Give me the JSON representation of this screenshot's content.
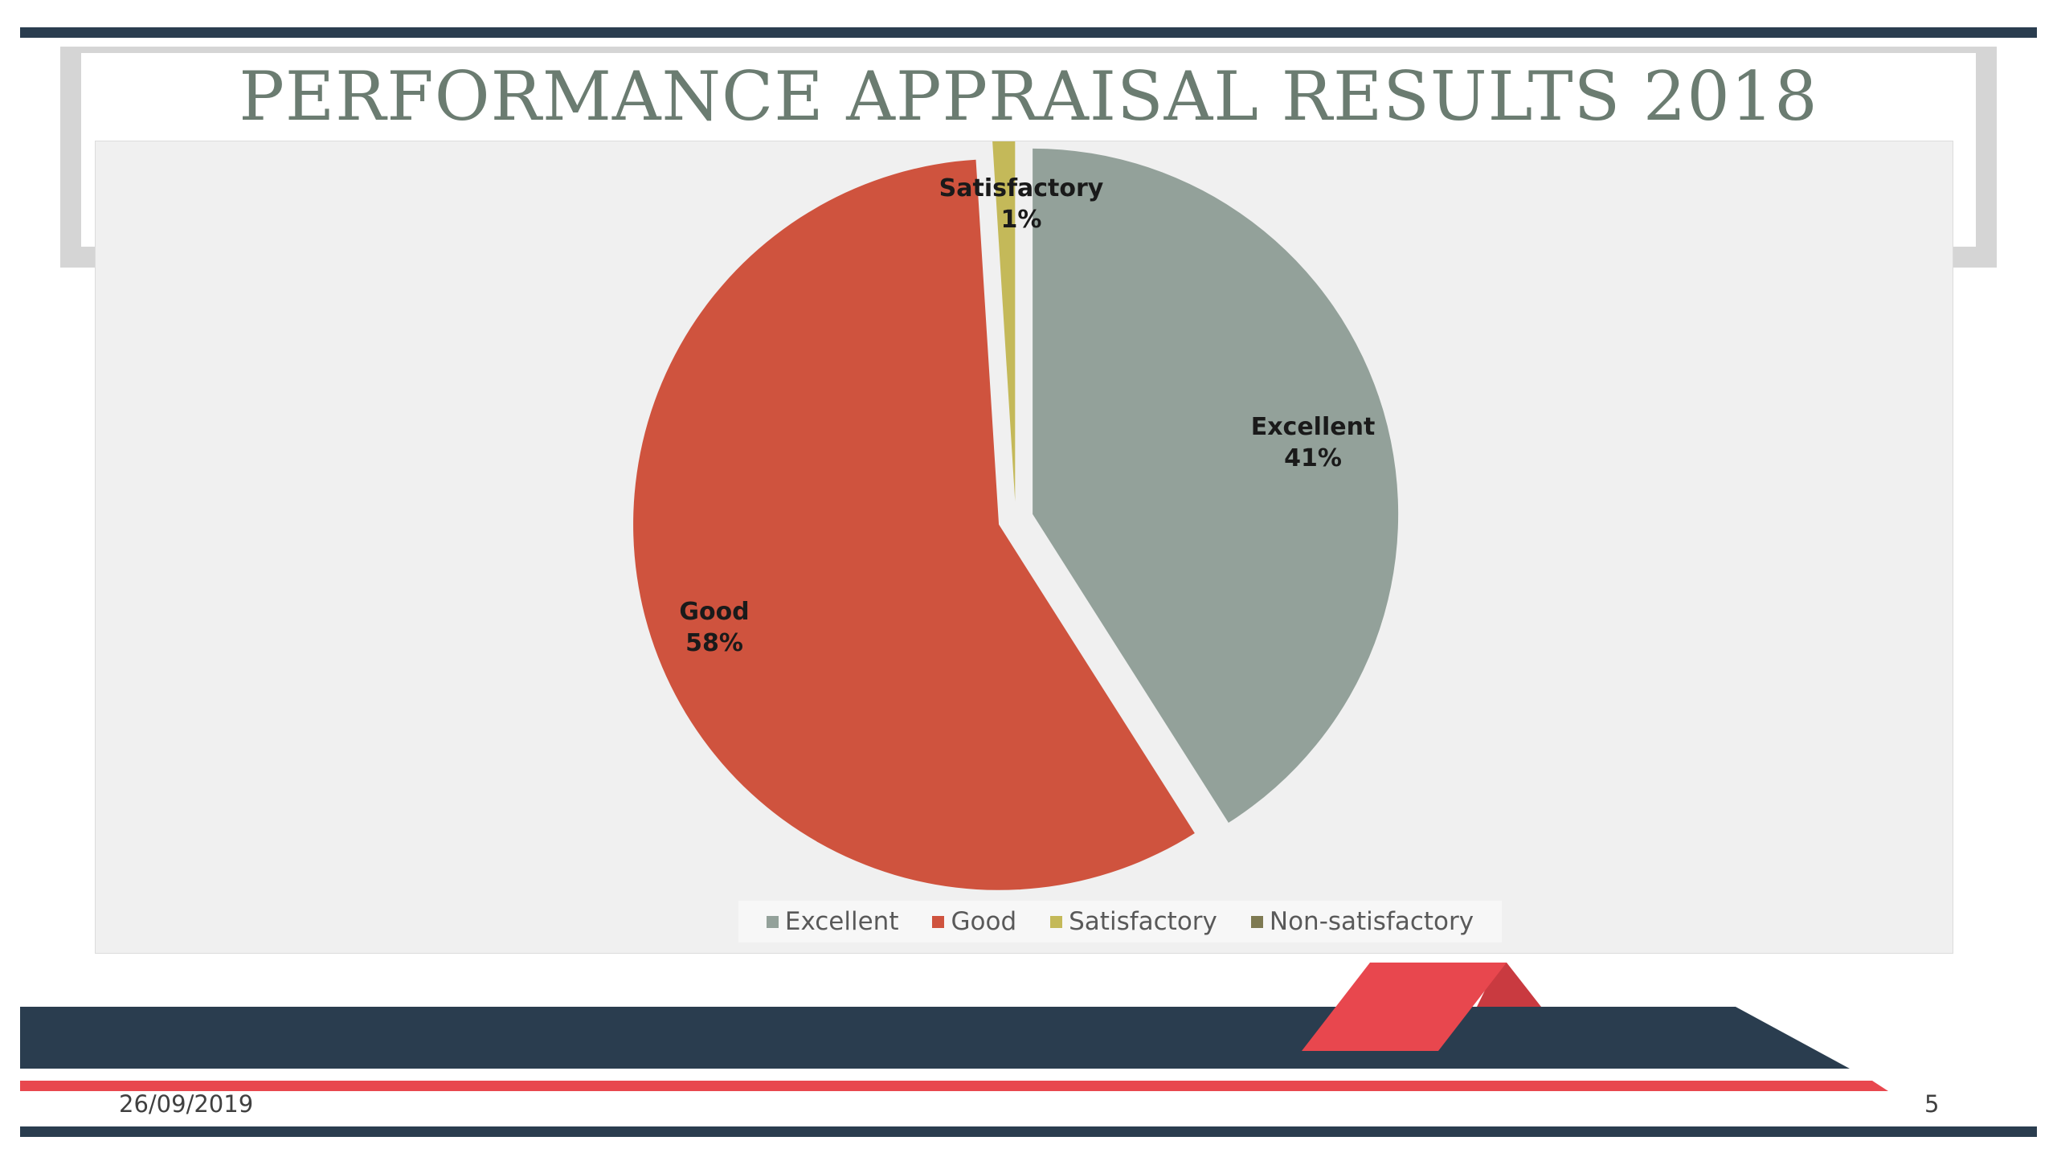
{
  "slide": {
    "title": "PERFORMANCE APPRAISAL RESULTS 2018",
    "date": "26/09/2019",
    "slide_number": "5"
  },
  "colors": {
    "excellent": "#93a19a",
    "good": "#cf533e",
    "satisfactory": "#c4b959",
    "non_satisfactory": "#7e7a52",
    "dark_band": "#2a3d4f",
    "accent_red": "#e8474e"
  },
  "chart_data": {
    "type": "pie",
    "title": "",
    "categories": [
      "Excellent",
      "Good",
      "Satisfactory",
      "Non-satisfactory"
    ],
    "values": [
      41,
      58,
      1,
      0
    ],
    "data_labels": [
      {
        "name": "Excellent",
        "pct": "41%"
      },
      {
        "name": "Good",
        "pct": "58%"
      },
      {
        "name": "Satisfactory",
        "pct": "1%"
      }
    ],
    "exploded": true,
    "legend_position": "bottom"
  },
  "legend": {
    "items": [
      {
        "label": "Excellent"
      },
      {
        "label": "Good"
      },
      {
        "label": "Satisfactory"
      },
      {
        "label": "Non-satisfactory"
      }
    ]
  }
}
